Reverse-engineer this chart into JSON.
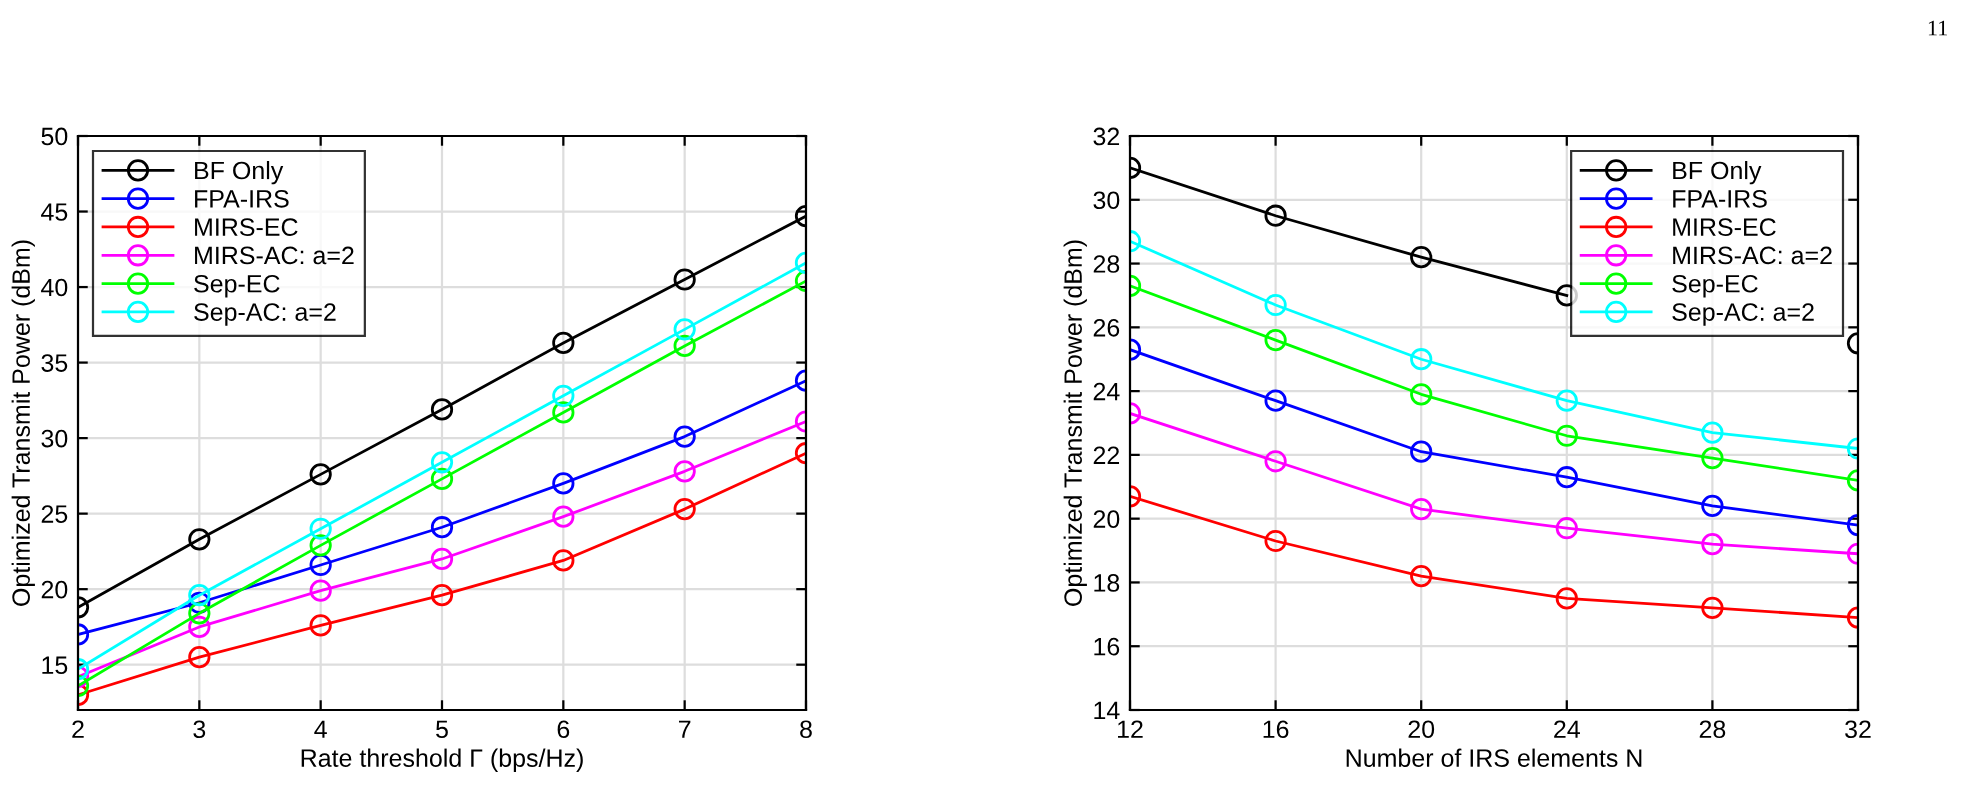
{
  "chart_data": [
    {
      "type": "line",
      "xlabel": "Rate threshold Γ (bps/Hz)",
      "ylabel": "Optimized Transmit Power (dBm)",
      "x": [
        2,
        3,
        4,
        5,
        6,
        7,
        8
      ],
      "xlim": [
        2,
        8
      ],
      "xticks": [
        2,
        3,
        4,
        5,
        6,
        7,
        8
      ],
      "ylim": [
        12,
        50
      ],
      "yticks": [
        15,
        20,
        25,
        30,
        35,
        40,
        45,
        50
      ],
      "grid": true,
      "legend": "top left",
      "marker": "circle",
      "line_style": "solid",
      "annotations": [
        "11"
      ],
      "series": [
        {
          "name": "BF Only",
          "color": "#000000",
          "values": [
            18.8,
            23.3,
            27.6,
            31.9,
            36.3,
            40.5,
            44.7
          ]
        },
        {
          "name": "FPA-IRS",
          "color": "#0000ff",
          "values": [
            17.0,
            19.1,
            21.6,
            24.1,
            27.0,
            30.1,
            33.8
          ]
        },
        {
          "name": "MIRS-EC",
          "color": "#ff0000",
          "values": [
            13.0,
            15.5,
            17.6,
            19.6,
            21.9,
            25.3,
            29.0
          ]
        },
        {
          "name": "MIRS-AC: a=2",
          "color": "#ff00ff",
          "values": [
            14.2,
            17.5,
            19.9,
            22.0,
            24.8,
            27.8,
            31.1
          ]
        },
        {
          "name": "Sep-EC",
          "color": "#00ff00",
          "values": [
            13.6,
            18.4,
            22.9,
            27.3,
            31.7,
            36.1,
            40.4
          ]
        },
        {
          "name": "Sep-AC: a=2",
          "color": "#00ffff",
          "values": [
            14.7,
            19.6,
            24.0,
            28.4,
            32.8,
            37.2,
            41.6
          ]
        }
      ]
    },
    {
      "type": "line",
      "xlabel": "Number of IRS elements N",
      "ylabel": "Optimized Transmit Power (dBm)",
      "x": [
        12,
        16,
        20,
        24,
        28,
        32
      ],
      "xlim": [
        12,
        32
      ],
      "xticks": [
        12,
        16,
        20,
        24,
        28,
        32
      ],
      "ylim": [
        14,
        32
      ],
      "yticks": [
        14,
        16,
        18,
        20,
        22,
        24,
        26,
        28,
        30,
        32
      ],
      "grid": true,
      "legend": "top right",
      "marker": "circle",
      "line_style": "solid",
      "series": [
        {
          "name": "BF Only",
          "color": "#000000",
          "values": [
            31.0,
            29.5,
            28.2,
            27.0,
            null,
            25.5
          ]
        },
        {
          "name": "FPA-IRS",
          "color": "#0000ff",
          "values": [
            25.3,
            23.7,
            22.1,
            21.3,
            20.4,
            19.8
          ]
        },
        {
          "name": "MIRS-EC",
          "color": "#ff0000",
          "values": [
            20.7,
            19.3,
            18.2,
            17.5,
            17.2,
            16.9
          ]
        },
        {
          "name": "MIRS-AC: a=2",
          "color": "#ff00ff",
          "values": [
            23.3,
            21.8,
            20.3,
            19.7,
            19.2,
            18.9
          ]
        },
        {
          "name": "Sep-EC",
          "color": "#00ff00",
          "values": [
            27.3,
            25.6,
            23.9,
            22.6,
            21.9,
            21.2
          ]
        },
        {
          "name": "Sep-AC: a=2",
          "color": "#00ffff",
          "values": [
            28.7,
            26.7,
            25.0,
            23.7,
            22.7,
            22.2
          ]
        }
      ]
    }
  ]
}
